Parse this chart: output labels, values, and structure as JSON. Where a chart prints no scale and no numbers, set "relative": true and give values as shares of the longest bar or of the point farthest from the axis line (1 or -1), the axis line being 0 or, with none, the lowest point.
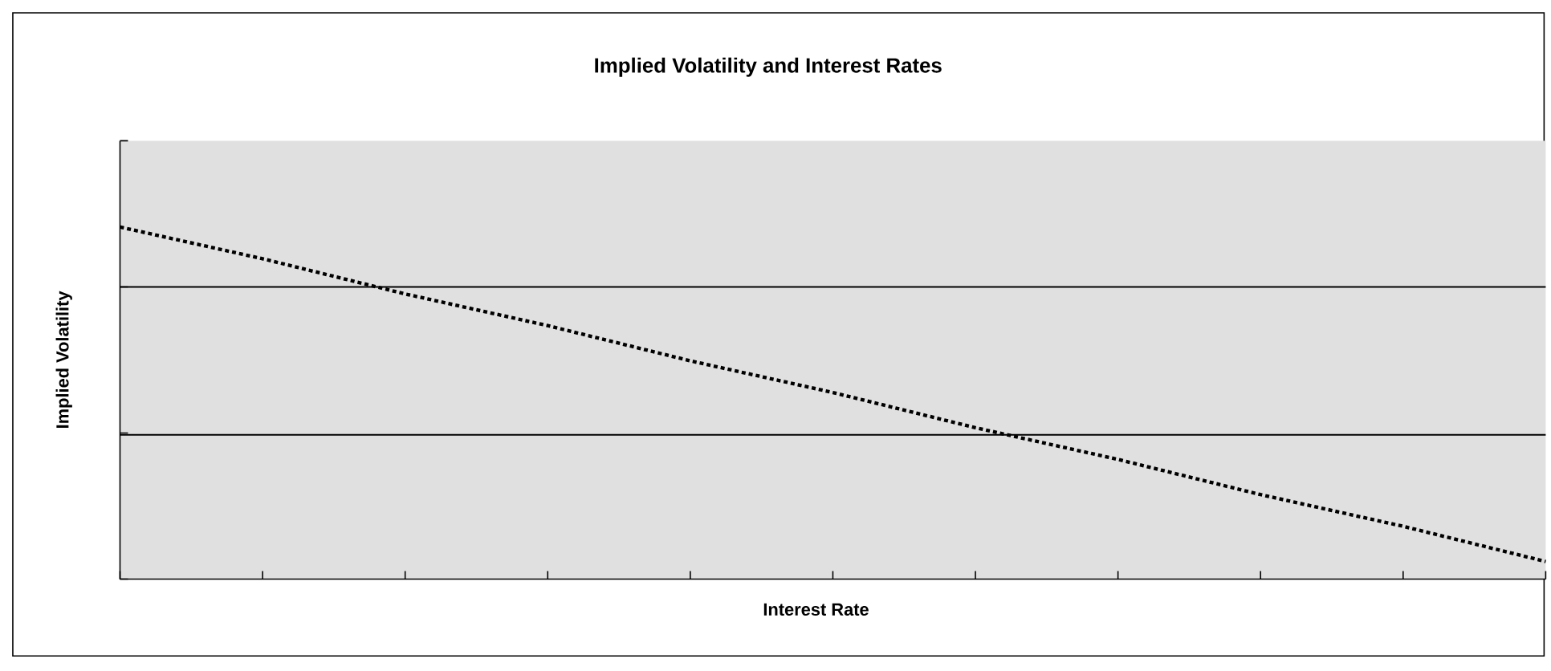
{
  "chart_data": {
    "type": "line",
    "title": "Implied Volatility and Interest Rates",
    "xlabel": "Interest Rate",
    "ylabel": "Implied Volatility",
    "relative": true,
    "categories": [
      null,
      null,
      null,
      null,
      null,
      null,
      null,
      null,
      null,
      null,
      null
    ],
    "series": [
      {
        "color": "#000000",
        "values": [
          1,
          0.91,
          0.81,
          0.72,
          0.62,
          0.53,
          0.43,
          0.34,
          0.24,
          0.15,
          0.05
        ]
      }
    ],
    "ref_lines": [
      {
        "axis": "y",
        "value": 0.83,
        "color": "#000000"
      },
      {
        "axis": "y",
        "value": 0.41,
        "color": "#000000"
      }
    ],
    "line_style": "dotted",
    "marker": "none"
  }
}
